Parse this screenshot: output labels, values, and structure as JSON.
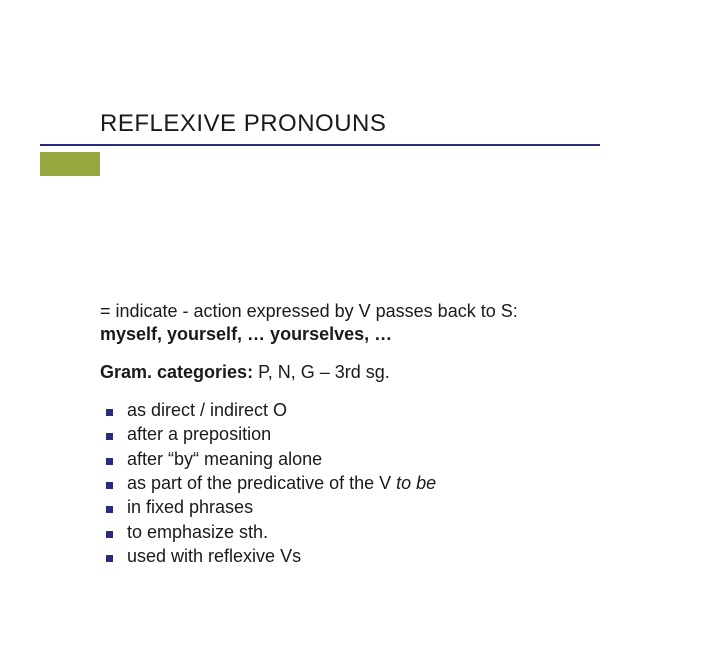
{
  "title": "REFLEXIVE PRONOUNS",
  "definition": {
    "line1": "= indicate - action expressed by V passes back to S:",
    "line2_bold": "myself, yourself, …  yourselves, …"
  },
  "categories": {
    "label_bold": "Gram. categories:",
    "rest": " P, N, G – 3rd sg."
  },
  "bullets": [
    {
      "text": "as direct / indirect O",
      "italic_suffix": ""
    },
    {
      "text": "after a preposition",
      "italic_suffix": ""
    },
    {
      "text": "after “by“ meaning alone",
      "italic_suffix": ""
    },
    {
      "text": "as part of the predicative of the V ",
      "italic_suffix": "to be"
    },
    {
      "text": "in fixed phrases",
      "italic_suffix": ""
    },
    {
      "text": "to emphasize sth.",
      "italic_suffix": ""
    },
    {
      "text": "used with reflexive Vs",
      "italic_suffix": ""
    }
  ],
  "colors": {
    "accent_bar": "#97a63f",
    "accent_line": "#2a2a7a",
    "bullet_marker": "#2a2a7a",
    "background": "#ffffff",
    "text": "#1a1a1a"
  },
  "typography": {
    "title_fontsize": 24,
    "body_fontsize": 18,
    "font_family": "Verdana"
  }
}
